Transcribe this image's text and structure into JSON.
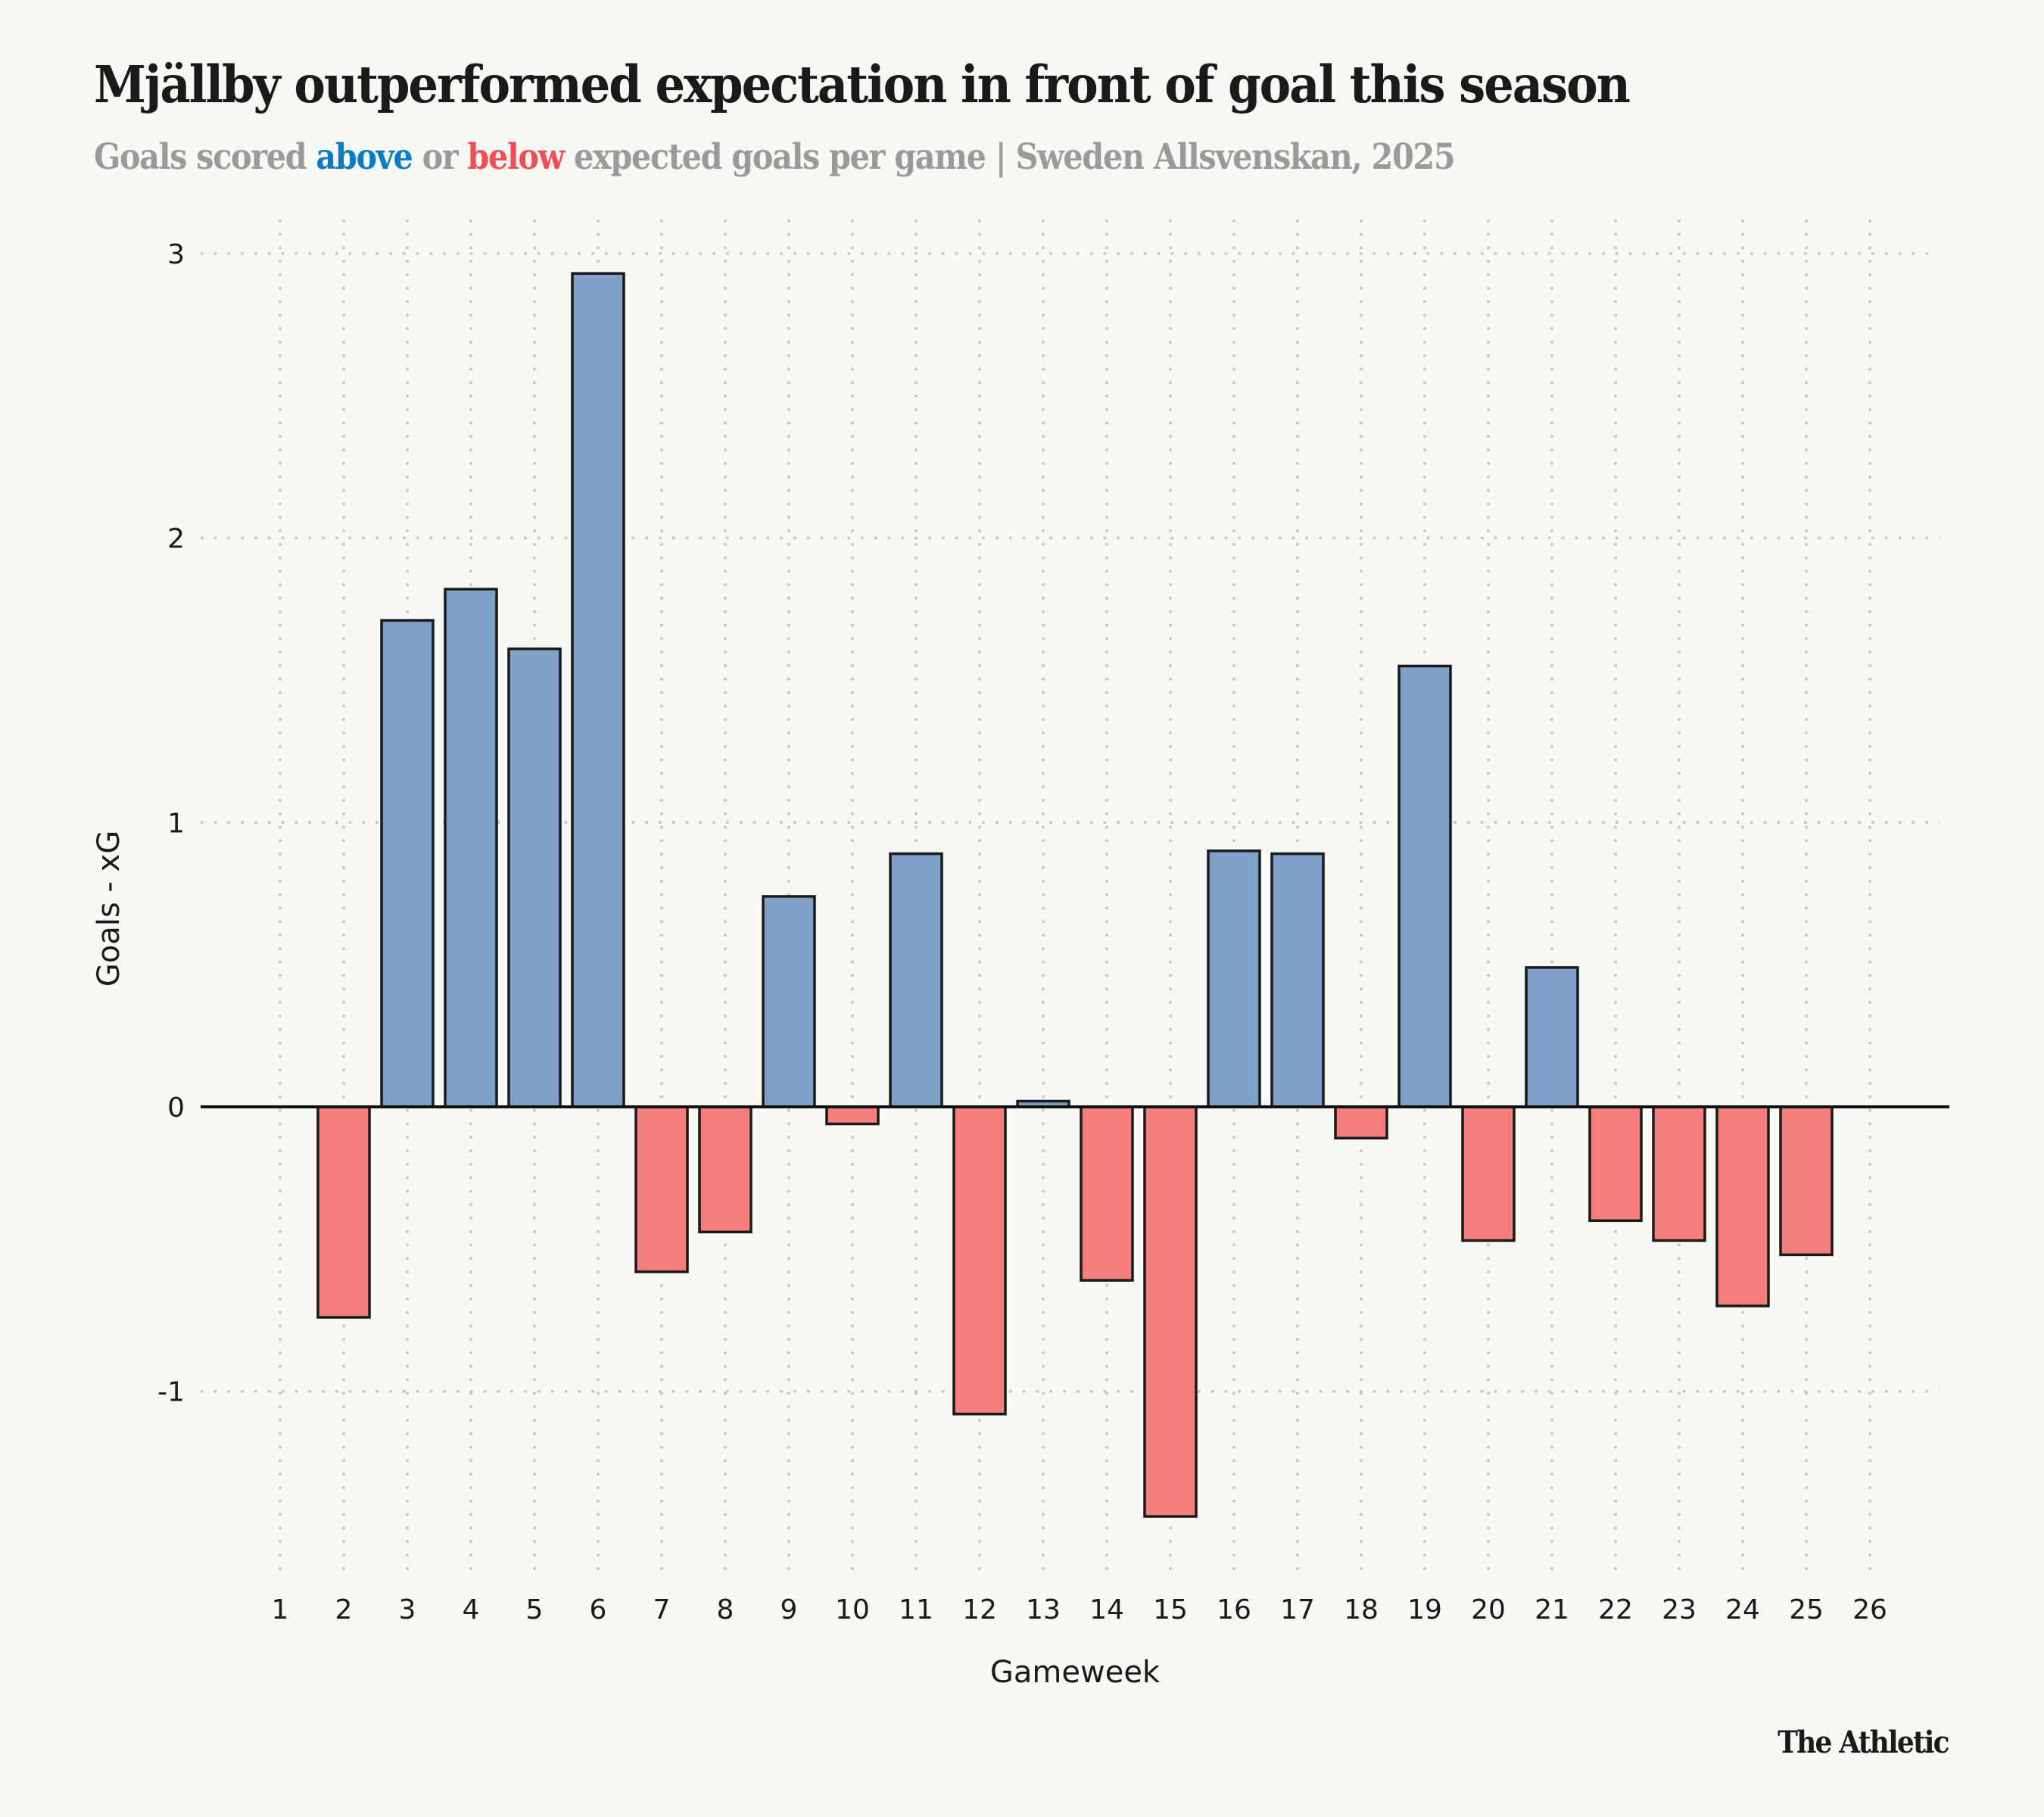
{
  "title": "Mjällby outperformed expectation in front of goal this season",
  "subtitle": {
    "part1": "Goals scored ",
    "above": "above",
    "part2": " or ",
    "below": "below",
    "part3": " expected goals per game | Sweden Allsvenskan, 2025"
  },
  "brand": "The Athletic",
  "colors": {
    "positive": "#7fa0c8",
    "negative": "#f47e7c",
    "above_text": "#0a7cc2",
    "below_text": "#f04e54",
    "bar_outline": "#1a1a1a",
    "grid": "#c4c4c4",
    "background": "#f7f7f3"
  },
  "chart_data": {
    "type": "bar",
    "title": "Mjällby outperformed expectation in front of goal this season",
    "subtitle": "Goals scored above or below expected goals per game | Sweden Allsvenskan, 2025",
    "xlabel": "Gameweek",
    "ylabel": "Goals - xG",
    "categories": [
      "1",
      "2",
      "3",
      "4",
      "5",
      "6",
      "7",
      "8",
      "9",
      "10",
      "11",
      "12",
      "13",
      "14",
      "15",
      "16",
      "17",
      "18",
      "19",
      "20",
      "21",
      "22",
      "23",
      "24",
      "25",
      "26"
    ],
    "values": [
      0,
      -0.74,
      1.71,
      1.82,
      1.61,
      2.93,
      -0.58,
      -0.44,
      0.74,
      -0.06,
      0.89,
      -1.08,
      0.02,
      -0.61,
      -1.44,
      0.9,
      0.89,
      -0.11,
      1.55,
      -0.47,
      0.49,
      -0.4,
      -0.47,
      -0.7,
      -0.52,
      0
    ],
    "yticks": [
      -1,
      0,
      1,
      2,
      3
    ],
    "ytick_labels": [
      "-1",
      "0",
      "1",
      "2",
      "3"
    ],
    "ylim": [
      -1.65,
      3.1
    ],
    "grid": true,
    "grid_style": "dotted",
    "legend": "none (encoded in subtitle colors)"
  }
}
